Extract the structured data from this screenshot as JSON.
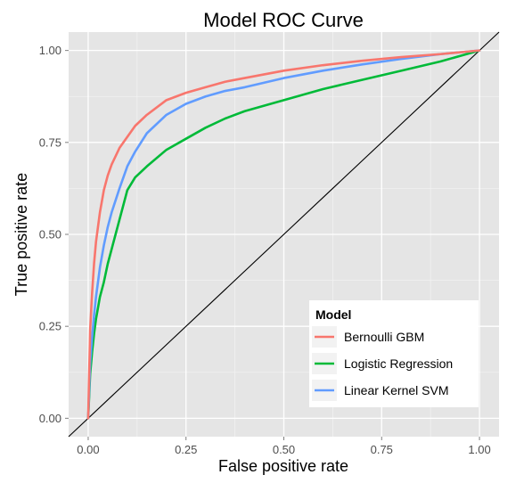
{
  "chart_data": {
    "type": "line",
    "title": "Model ROC Curve",
    "xlabel": "False positive rate",
    "ylabel": "True positive rate",
    "xlim": [
      0,
      1
    ],
    "ylim": [
      0,
      1
    ],
    "xticks": [
      "0.00",
      "0.25",
      "0.50",
      "0.75",
      "1.00"
    ],
    "yticks": [
      "0.00",
      "0.25",
      "0.50",
      "0.75",
      "1.00"
    ],
    "grid": true,
    "legend": {
      "title": "Model",
      "placement": "bottom-right"
    },
    "series": [
      {
        "name": "Bernoulli GBM",
        "color": "#F8766D",
        "x": [
          0,
          0.005,
          0.01,
          0.015,
          0.02,
          0.03,
          0.04,
          0.05,
          0.06,
          0.08,
          0.1,
          0.12,
          0.15,
          0.2,
          0.25,
          0.3,
          0.35,
          0.4,
          0.5,
          0.6,
          0.7,
          0.8,
          0.9,
          1.0
        ],
        "y": [
          0,
          0.24,
          0.34,
          0.42,
          0.48,
          0.56,
          0.62,
          0.66,
          0.69,
          0.735,
          0.765,
          0.795,
          0.825,
          0.865,
          0.885,
          0.9,
          0.915,
          0.925,
          0.945,
          0.96,
          0.972,
          0.982,
          0.99,
          1.0
        ]
      },
      {
        "name": "Logistic Regression",
        "color": "#00BA38",
        "x": [
          0,
          0.005,
          0.01,
          0.015,
          0.02,
          0.03,
          0.04,
          0.05,
          0.06,
          0.08,
          0.1,
          0.12,
          0.15,
          0.2,
          0.25,
          0.3,
          0.35,
          0.4,
          0.5,
          0.6,
          0.7,
          0.8,
          0.9,
          1.0
        ],
        "y": [
          0,
          0.12,
          0.18,
          0.23,
          0.27,
          0.33,
          0.37,
          0.42,
          0.46,
          0.54,
          0.62,
          0.655,
          0.685,
          0.73,
          0.76,
          0.79,
          0.815,
          0.835,
          0.865,
          0.895,
          0.92,
          0.945,
          0.97,
          1.0
        ]
      },
      {
        "name": "Linear Kernel SVM",
        "color": "#619CFF",
        "x": [
          0,
          0.005,
          0.01,
          0.015,
          0.02,
          0.03,
          0.04,
          0.05,
          0.06,
          0.08,
          0.1,
          0.12,
          0.15,
          0.2,
          0.25,
          0.3,
          0.35,
          0.4,
          0.5,
          0.6,
          0.7,
          0.8,
          0.9,
          1.0
        ],
        "y": [
          0,
          0.15,
          0.22,
          0.28,
          0.33,
          0.41,
          0.47,
          0.52,
          0.56,
          0.625,
          0.685,
          0.725,
          0.775,
          0.825,
          0.855,
          0.875,
          0.89,
          0.9,
          0.925,
          0.945,
          0.962,
          0.977,
          0.99,
          1.0
        ]
      }
    ],
    "reference_line": {
      "x": [
        -0.05,
        1.05
      ],
      "y": [
        -0.05,
        1.05
      ],
      "color": "#000000"
    }
  }
}
